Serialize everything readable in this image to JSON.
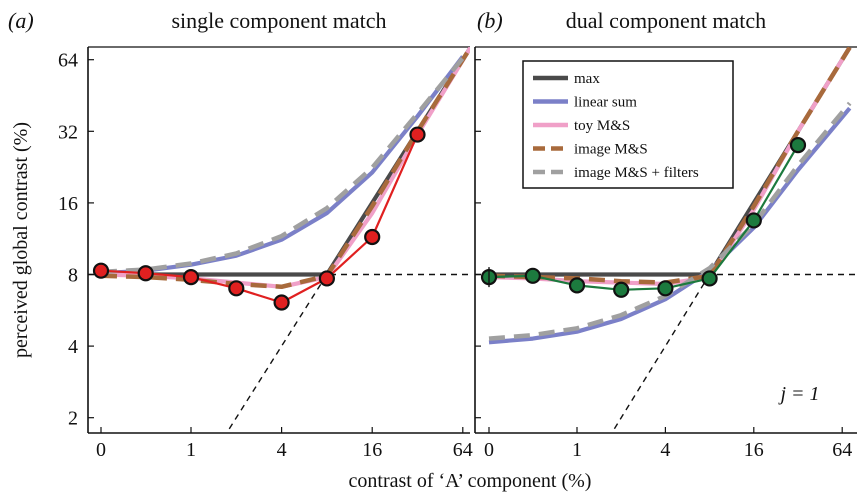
{
  "chart_data": [
    {
      "panel_label": "(a)",
      "title": "single component match",
      "type": "line",
      "xlabel": "contrast of ‘A’ component (%)",
      "ylabel": "perceived global contrast (%)",
      "x_scale": "log2-with-zero",
      "y_scale": "log2",
      "x_ticks": [
        "0",
        "1",
        "4",
        "16",
        "64"
      ],
      "y_ticks": [
        "2",
        "4",
        "8",
        "16",
        "32",
        "64"
      ],
      "xlim": [
        0,
        64
      ],
      "ylim": [
        1.8,
        72
      ],
      "grid": false,
      "reference_lines": [
        {
          "name": "horizontal-8",
          "style": "dashed",
          "y": 8
        },
        {
          "name": "diagonal-identity",
          "style": "dashed",
          "x": [
            1.5,
            8
          ],
          "y": [
            1.5,
            8
          ]
        }
      ],
      "series": [
        {
          "name": "max",
          "color": "#4a4a4a",
          "style": "solid",
          "x": [
            0,
            0.5,
            1,
            2,
            4,
            8,
            16,
            32,
            72
          ],
          "y": [
            8,
            8,
            8,
            8,
            8,
            8,
            16,
            32,
            72
          ]
        },
        {
          "name": "linear sum",
          "color": "#7b80c8",
          "style": "solid",
          "x": [
            0,
            0.5,
            1,
            2,
            4,
            8,
            16,
            32,
            64
          ],
          "y": [
            8.1,
            8.3,
            8.8,
            9.6,
            11.2,
            14.5,
            21.5,
            37,
            66
          ]
        },
        {
          "name": "toy M&S",
          "color": "#f0a0c8",
          "style": "solid",
          "x": [
            0,
            0.5,
            1,
            2,
            4,
            8,
            16,
            32,
            72
          ],
          "y": [
            8,
            7.9,
            7.7,
            7.4,
            7.1,
            7.8,
            14.5,
            31,
            72
          ]
        },
        {
          "name": "image M&S",
          "color": "#a86a3c",
          "style": "dashed",
          "x": [
            0,
            0.5,
            1,
            2,
            4,
            8,
            16,
            32,
            72
          ],
          "y": [
            7.9,
            7.8,
            7.6,
            7.3,
            7.1,
            7.9,
            15.5,
            32,
            72
          ]
        },
        {
          "name": "image M&S + filters",
          "color": "#a0a0a0",
          "style": "dashed",
          "x": [
            0,
            0.5,
            1,
            2,
            4,
            8,
            16,
            32,
            64
          ],
          "y": [
            8.2,
            8.4,
            8.9,
            9.8,
            11.6,
            15.2,
            22.5,
            38,
            65
          ]
        },
        {
          "name": "data",
          "color": "#e02020",
          "style": "solid",
          "markers": true,
          "x": [
            0,
            0.5,
            1,
            2,
            4,
            8,
            16,
            32
          ],
          "y": [
            8.3,
            8.1,
            7.8,
            7.0,
            6.1,
            7.7,
            11.5,
            31
          ]
        }
      ]
    },
    {
      "panel_label": "(b)",
      "title": "dual component match",
      "type": "line",
      "xlabel": "contrast of ‘A’ component (%)",
      "ylabel": "perceived global contrast (%)",
      "x_scale": "log2-with-zero",
      "y_scale": "log2",
      "x_ticks": [
        "0",
        "1",
        "4",
        "16",
        "64"
      ],
      "y_ticks": [
        "2",
        "4",
        "8",
        "16",
        "32",
        "64"
      ],
      "xlim": [
        0,
        64
      ],
      "ylim": [
        1.8,
        72
      ],
      "grid": false,
      "annotation": "j = 1",
      "legend": {
        "placement": "top-right",
        "entries": [
          "max",
          "linear sum",
          "toy M&S",
          "image M&S",
          "image M&S + filters"
        ]
      },
      "reference_lines": [
        {
          "name": "horizontal-8",
          "style": "dashed",
          "y": 8
        },
        {
          "name": "diagonal-identity",
          "style": "dashed",
          "x": [
            1.5,
            8
          ],
          "y": [
            1.5,
            8
          ]
        }
      ],
      "series": [
        {
          "name": "max",
          "color": "#4a4a4a",
          "style": "solid",
          "x": [
            0,
            0.5,
            1,
            2,
            4,
            8,
            16,
            32,
            72
          ],
          "y": [
            8,
            8,
            8,
            8,
            8,
            8,
            16,
            32,
            72
          ]
        },
        {
          "name": "linear sum",
          "color": "#7b80c8",
          "style": "solid",
          "x": [
            0,
            0.5,
            1,
            2,
            4,
            8,
            16,
            32,
            72
          ],
          "y": [
            4.15,
            4.3,
            4.6,
            5.2,
            6.3,
            8.3,
            12.6,
            22,
            40
          ]
        },
        {
          "name": "toy M&S",
          "color": "#f0a0c8",
          "style": "solid",
          "x": [
            0,
            0.5,
            1,
            2,
            4,
            8,
            16,
            32,
            72
          ],
          "y": [
            7.8,
            7.7,
            7.5,
            7.4,
            7.3,
            7.8,
            15,
            32,
            72
          ]
        },
        {
          "name": "image M&S",
          "color": "#a86a3c",
          "style": "dashed",
          "x": [
            0,
            0.5,
            1,
            2,
            4,
            8,
            16,
            32,
            72
          ],
          "y": [
            7.9,
            7.8,
            7.7,
            7.5,
            7.4,
            7.9,
            15.5,
            32,
            72
          ]
        },
        {
          "name": "image M&S + filters",
          "color": "#a0a0a0",
          "style": "dashed",
          "x": [
            0,
            0.5,
            1,
            2,
            4,
            8,
            16,
            32,
            72
          ],
          "y": [
            4.3,
            4.45,
            4.75,
            5.4,
            6.5,
            8.5,
            13,
            23,
            42
          ]
        },
        {
          "name": "data",
          "color": "#1c7a3e",
          "style": "solid",
          "markers": true,
          "x": [
            0,
            0.5,
            1,
            2,
            4,
            8,
            16,
            32
          ],
          "y": [
            7.8,
            7.9,
            7.2,
            6.9,
            7.0,
            7.7,
            13.5,
            28
          ]
        }
      ]
    }
  ]
}
